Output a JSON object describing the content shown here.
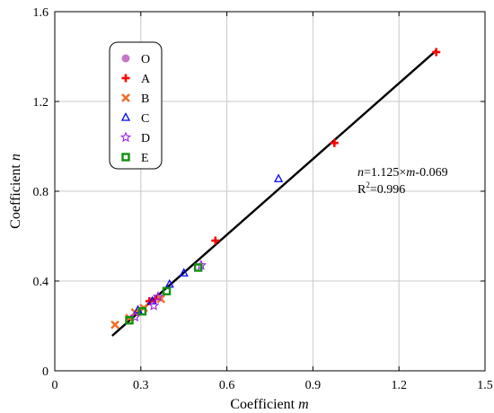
{
  "chart_data": {
    "type": "scatter",
    "xlabel_prefix": "Coefficient ",
    "xlabel_var": "m",
    "ylabel_prefix": "Coefficient ",
    "ylabel_var": "n",
    "xlim": [
      0,
      1.5
    ],
    "ylim": [
      0,
      1.6
    ],
    "xticks": [
      0,
      0.3,
      0.6,
      0.9,
      1.2,
      1.5
    ],
    "xtick_labels": [
      "0",
      "0.3",
      "0.6",
      "0.9",
      "1.2",
      "1.5"
    ],
    "yticks": [
      0,
      0.4,
      0.8,
      1.2,
      1.6
    ],
    "ytick_labels": [
      "0",
      "0.4",
      "0.8",
      "1.2",
      "1.6"
    ],
    "grid": true,
    "legend_position": "top-left",
    "series": [
      {
        "name": "O",
        "marker": "circle",
        "color": "#c678c6",
        "points": []
      },
      {
        "name": "A",
        "marker": "plus",
        "color": "#ff0000",
        "points": [
          [
            1.33,
            1.42
          ],
          [
            0.975,
            1.015
          ],
          [
            0.56,
            0.58
          ],
          [
            0.33,
            0.31
          ],
          [
            0.35,
            0.32
          ]
        ]
      },
      {
        "name": "B",
        "marker": "x",
        "color": "#f07028",
        "points": [
          [
            0.21,
            0.205
          ],
          [
            0.28,
            0.26
          ],
          [
            0.37,
            0.32
          ],
          [
            0.31,
            0.28
          ],
          [
            0.26,
            0.235
          ]
        ]
      },
      {
        "name": "C",
        "marker": "triangle",
        "color": "#0000ff",
        "points": [
          [
            0.78,
            0.855
          ],
          [
            0.45,
            0.435
          ],
          [
            0.4,
            0.385
          ],
          [
            0.34,
            0.31
          ],
          [
            0.29,
            0.27
          ]
        ]
      },
      {
        "name": "D",
        "marker": "star",
        "color": "#a020f0",
        "points": [
          [
            0.51,
            0.47
          ],
          [
            0.345,
            0.29
          ],
          [
            0.28,
            0.24
          ],
          [
            0.36,
            0.33
          ]
        ]
      },
      {
        "name": "E",
        "marker": "square",
        "color": "#109010",
        "points": [
          [
            0.5,
            0.46
          ],
          [
            0.39,
            0.355
          ],
          [
            0.305,
            0.265
          ],
          [
            0.26,
            0.225
          ]
        ]
      }
    ],
    "fit_line": {
      "x_range": [
        0.2,
        1.33
      ],
      "slope": 1.125,
      "intercept": -0.069,
      "color": "#000000"
    },
    "annotation": {
      "equation_parts": [
        "n",
        "=1.125×",
        "m",
        "-0.069"
      ],
      "r2_prefix": "R",
      "r2_sup": "2",
      "r2_value": "=0.996"
    }
  }
}
